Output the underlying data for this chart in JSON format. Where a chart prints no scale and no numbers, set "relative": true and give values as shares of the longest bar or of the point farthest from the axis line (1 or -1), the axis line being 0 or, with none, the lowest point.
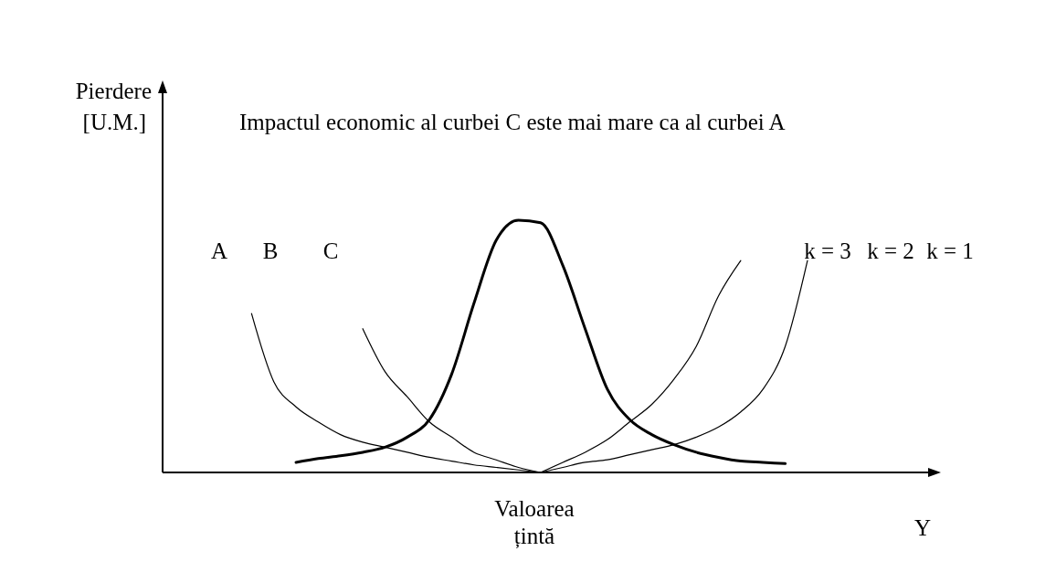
{
  "chart_data": {
    "type": "line",
    "relative": true,
    "title": "Impactul economic al curbei C este mai mare ca al curbei A",
    "ylabel": "Pierdere [U.M.]",
    "xlabel": "Y",
    "marker": "none",
    "line_style": "solid",
    "categories": [
      null,
      null,
      null,
      null,
      null,
      null,
      null,
      null,
      null,
      null,
      null,
      null,
      null,
      null,
      null,
      null,
      null,
      null,
      null,
      null,
      null,
      null,
      null,
      null,
      null,
      null,
      null,
      null,
      null,
      null,
      null,
      null,
      null,
      null,
      null,
      null
    ],
    "annotations": [
      "A",
      "B",
      "C",
      "k = 3",
      "k = 2",
      "k = 1",
      "Valoarea țintă"
    ],
    "series": [
      {
        "color": "#000000",
        "values": [
          null,
          null,
          null,
          null,
          null,
          null,
          0.04,
          0.055,
          0.066,
          0.08,
          0.1,
          0.14,
          0.21,
          0.39,
          0.67,
          0.92,
          1,
          0.99,
          0.82,
          0.57,
          0.33,
          0.21,
          0.15,
          0.11,
          0.08,
          0.06,
          0.045,
          0.04,
          0.035,
          null,
          null,
          null,
          null,
          null,
          null,
          null
        ]
      },
      {
        "color": "#000000",
        "values": [
          null,
          null,
          null,
          null,
          0.63,
          0.36,
          0.26,
          0.2,
          0.15,
          0.12,
          0.1,
          0.08,
          0.06,
          0.045,
          0.03,
          0.02,
          0.01,
          0,
          null,
          null,
          null,
          null,
          null,
          null,
          null,
          null,
          null,
          null,
          null,
          null,
          null,
          null,
          null,
          null,
          null,
          null
        ]
      },
      {
        "color": "#000000",
        "values": [
          null,
          null,
          null,
          null,
          null,
          null,
          null,
          null,
          null,
          0.57,
          0.4,
          0.3,
          0.2,
          0.14,
          0.08,
          0.05,
          0.02,
          0,
          null,
          null,
          null,
          null,
          null,
          null,
          null,
          null,
          null,
          null,
          null,
          null,
          null,
          null,
          null,
          null,
          null,
          null
        ]
      },
      {
        "color": "#000000",
        "values": [
          null,
          null,
          null,
          null,
          null,
          null,
          null,
          null,
          null,
          null,
          null,
          null,
          null,
          null,
          null,
          null,
          null,
          0,
          0.04,
          0.08,
          0.13,
          0.2,
          0.27,
          0.37,
          0.5,
          0.7,
          0.84,
          null,
          null,
          null,
          null,
          null,
          null,
          null,
          null,
          null
        ]
      },
      {
        "color": "#000000",
        "values": [
          null,
          null,
          null,
          null,
          null,
          null,
          null,
          null,
          null,
          null,
          null,
          null,
          null,
          null,
          null,
          null,
          null,
          0,
          0.02,
          0.04,
          0.05,
          0.07,
          0.09,
          0.11,
          0.14,
          0.18,
          0.24,
          0.33,
          0.5,
          0.84,
          null,
          null,
          null,
          null,
          null,
          null
        ]
      }
    ]
  }
}
